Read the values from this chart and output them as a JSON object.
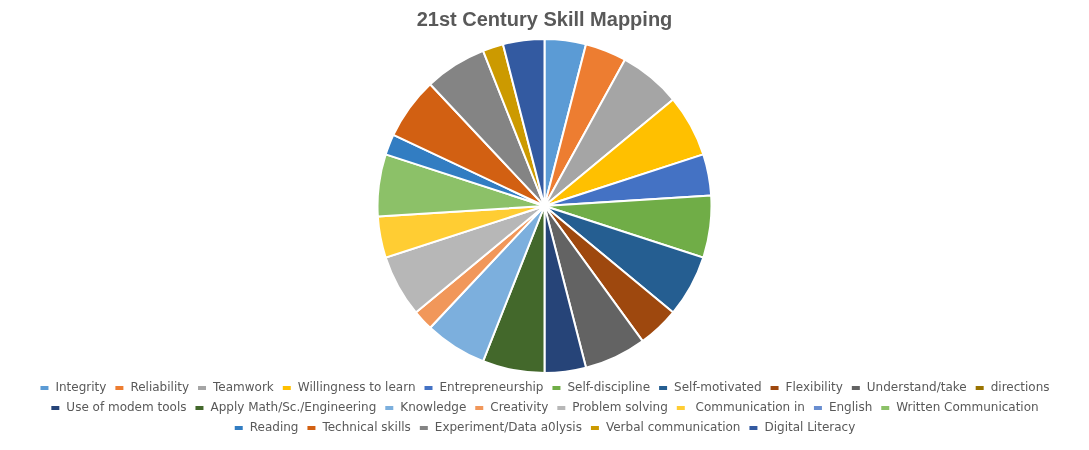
{
  "chart_data": {
    "type": "pie",
    "title": "21st Century Skill Mapping",
    "categories": [
      "Integrity",
      "Reliability",
      "Teamwork",
      "Willingness to learn",
      "Entrepreneurship",
      "Self-discipline",
      "Self-motivated",
      "Flexibility",
      "Understand/take",
      "directions",
      "Use of modem tools",
      "Apply Math/Sc./Engineering",
      "Knowledge",
      "Creativity",
      "Problem solving",
      " Communication in",
      "English",
      "Written Communication",
      "Reading",
      "Technical skills",
      "Experiment/Data a0lysis",
      "Verbal communication",
      "Digital Literacy"
    ],
    "values": [
      4,
      4,
      6,
      6,
      4,
      6,
      6,
      4,
      6,
      0,
      4,
      6,
      6,
      2,
      6,
      4,
      0,
      6,
      2,
      6,
      6,
      2,
      4
    ],
    "colors": [
      "#5b9bd5",
      "#ed7d31",
      "#a5a5a5",
      "#ffc000",
      "#4472c4",
      "#70ad47",
      "#255e91",
      "#9e480e",
      "#636363",
      "#997300",
      "#264478",
      "#43682b",
      "#7cafdd",
      "#f1975a",
      "#b7b7b7",
      "#ffcd33",
      "#698ed0",
      "#8cc168",
      "#327dc2",
      "#d26012",
      "#848484",
      "#cc9a00",
      "#335aa1"
    ],
    "legend": "bottom"
  }
}
